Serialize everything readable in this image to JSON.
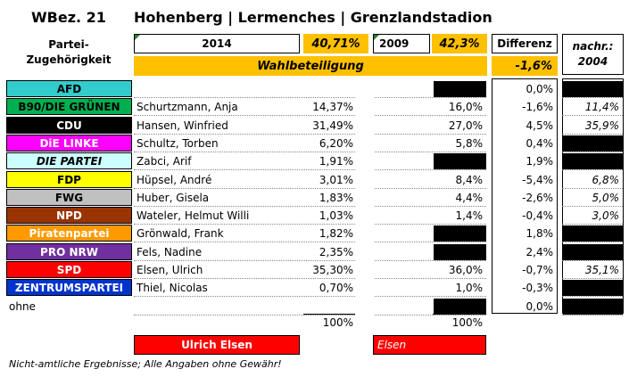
{
  "header": {
    "wbez": "WBez. 21",
    "place": "Hohenberg | Lermenches | Grenzlandstadion",
    "party_label_line1": "Partei-",
    "party_label_line2": "Zugehörigkeit",
    "year_2014": "2014",
    "pct_2014": "40,71%",
    "year_2009": "2009",
    "pct_2009": "42,3%",
    "differenz_label": "Differenz",
    "nachr_line1": "nachr.:",
    "nachr_line2": "2004",
    "wahlbeteiligung_label": "Wahlbeteiligung",
    "wahlbeteiligung_diff": "-1,6%"
  },
  "colors": {
    "yellow": "#ffc000",
    "red": "#ff0000"
  },
  "rows": [
    {
      "party": "AFD",
      "bg": "#33cccc",
      "fg": "#000000",
      "italic": false,
      "candidate": "",
      "pct2014": "",
      "pct2009": "",
      "diff": "0,0%",
      "nachr": "",
      "black2009": true,
      "blackNachr": true
    },
    {
      "party": "B90/DIE GRÜNEN",
      "bg": "#00b050",
      "fg": "#000000",
      "italic": false,
      "candidate": "Schurtzmann, Anja",
      "pct2014": "14,37%",
      "pct2009": "16,0%",
      "diff": "-1,6%",
      "nachr": "11,4%",
      "black2009": false,
      "blackNachr": false
    },
    {
      "party": "CDU",
      "bg": "#000000",
      "fg": "#ffffff",
      "italic": false,
      "candidate": "Hansen, Winfried",
      "pct2014": "31,49%",
      "pct2009": "27,0%",
      "diff": "4,5%",
      "nachr": "35,9%",
      "black2009": false,
      "blackNachr": false
    },
    {
      "party": "DiE LINKE",
      "bg": "#ff00ff",
      "fg": "#ffffff",
      "italic": false,
      "candidate": "Schultz, Torben",
      "pct2014": "6,20%",
      "pct2009": "5,8%",
      "diff": "0,4%",
      "nachr": "",
      "black2009": false,
      "blackNachr": true
    },
    {
      "party": "DIE PARTEI",
      "bg": "#ccffff",
      "fg": "#000000",
      "italic": true,
      "candidate": "Zabci, Arif",
      "pct2014": "1,91%",
      "pct2009": "",
      "diff": "1,9%",
      "nachr": "",
      "black2009": true,
      "blackNachr": true
    },
    {
      "party": "FDP",
      "bg": "#ffff00",
      "fg": "#000000",
      "italic": false,
      "candidate": "Hüpsel, André",
      "pct2014": "3,01%",
      "pct2009": "8,4%",
      "diff": "-5,4%",
      "nachr": "6,8%",
      "black2009": false,
      "blackNachr": false
    },
    {
      "party": "FWG",
      "bg": "#c0c0c0",
      "fg": "#000000",
      "italic": false,
      "candidate": "Huber, Gisela",
      "pct2014": "1,83%",
      "pct2009": "4,4%",
      "diff": "-2,6%",
      "nachr": "5,0%",
      "black2009": false,
      "blackNachr": false
    },
    {
      "party": "NPD",
      "bg": "#993300",
      "fg": "#ffffff",
      "italic": false,
      "candidate": "Wateler, Helmut Willi",
      "pct2014": "1,03%",
      "pct2009": "1,4%",
      "diff": "-0,4%",
      "nachr": "3,0%",
      "black2009": false,
      "blackNachr": false
    },
    {
      "party": "Piratenpartei",
      "bg": "#ff9900",
      "fg": "#ffffff",
      "italic": false,
      "candidate": "Grönwald, Frank",
      "pct2014": "1,82%",
      "pct2009": "",
      "diff": "1,8%",
      "nachr": "",
      "black2009": true,
      "blackNachr": true
    },
    {
      "party": "PRO NRW",
      "bg": "#7030a0",
      "fg": "#ffffff",
      "italic": false,
      "candidate": "Fels, Nadine",
      "pct2014": "2,35%",
      "pct2009": "",
      "diff": "2,4%",
      "nachr": "",
      "black2009": true,
      "blackNachr": true
    },
    {
      "party": "SPD",
      "bg": "#ff0000",
      "fg": "#ffffff",
      "italic": false,
      "candidate": "Elsen, Ulrich",
      "pct2014": "35,30%",
      "pct2009": "36,0%",
      "diff": "-0,7%",
      "nachr": "35,1%",
      "black2009": false,
      "blackNachr": false
    },
    {
      "party": "ZENTRUMSPARTEI",
      "bg": "#0033cc",
      "fg": "#ffffff",
      "italic": false,
      "candidate": "Thiel, Nicolas",
      "pct2014": "0,70%",
      "pct2009": "1,0%",
      "diff": "-0,3%",
      "nachr": "",
      "black2009": false,
      "blackNachr": true
    },
    {
      "party": "ohne",
      "bg": "",
      "fg": "#000000",
      "italic": false,
      "candidate": "",
      "pct2014": "",
      "pct2009": "",
      "diff": "0,0%",
      "nachr": "",
      "black2009": true,
      "blackNachr": true
    }
  ],
  "totals": {
    "sum2014": "100%",
    "sum2009": "100%"
  },
  "winners": {
    "winner2014": "Ulrich Elsen",
    "winner2009": "Elsen"
  },
  "footer": "Nicht-amtliche Ergebnisse; Alle Angaben ohne Gewähr!"
}
